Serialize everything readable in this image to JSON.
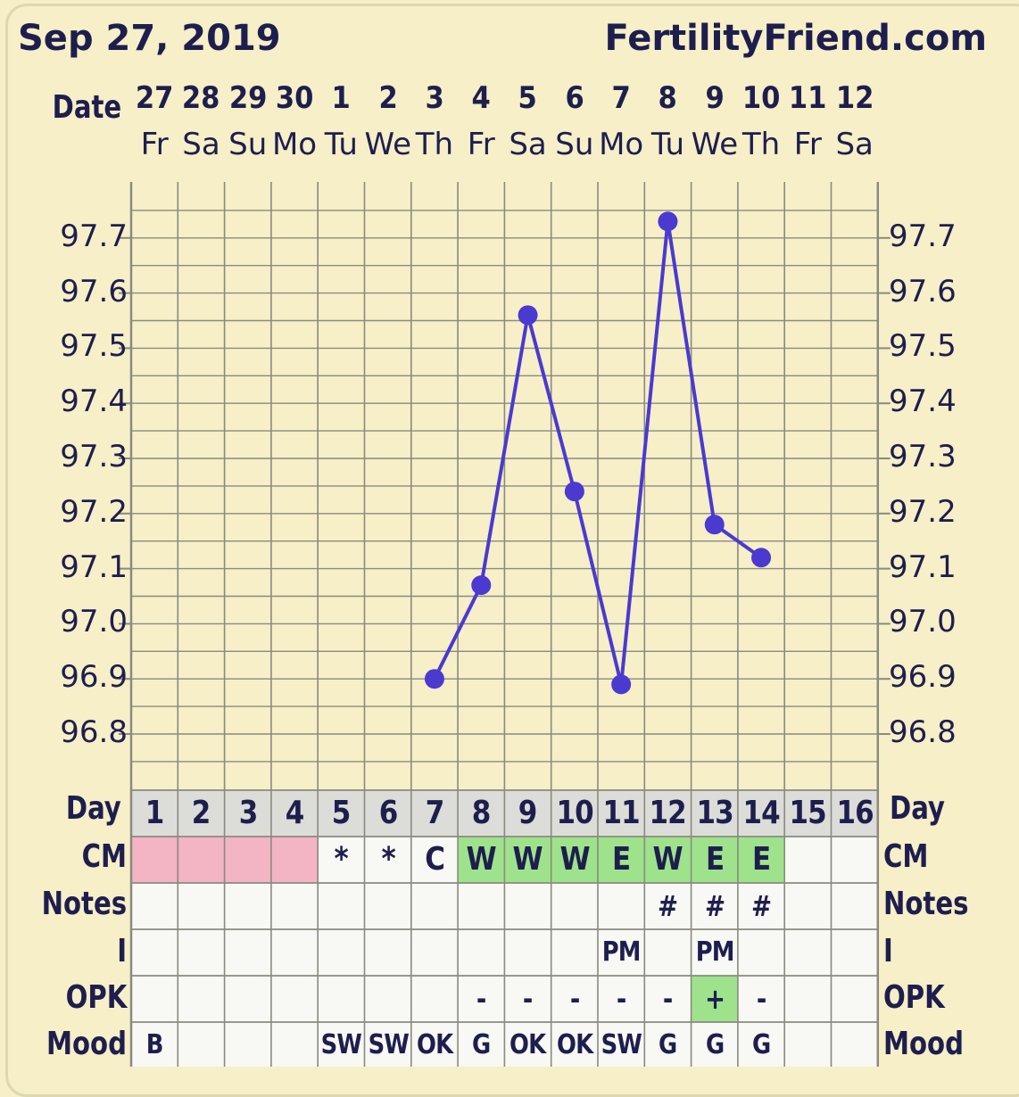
{
  "header": {
    "date": "Sep 27, 2019",
    "site": "FertilityFriend.com"
  },
  "labels": {
    "date": "Date",
    "day": "Day",
    "cm": "CM",
    "notes": "Notes",
    "i": "I",
    "opk": "OPK",
    "mood": "Mood"
  },
  "colors": {
    "background": "#f6efc7",
    "line": "#4a3ad0",
    "grid": "#8a8a80",
    "pink": "#f3b4c4",
    "green": "#9ee38b",
    "cell": "#f8f8f4",
    "dayrow": "#dcdcd8"
  },
  "columns": [
    {
      "date": "27",
      "dow": "Fr",
      "day": "1",
      "cm": "",
      "cm_fill": "pink",
      "notes": "",
      "i": "",
      "opk": "",
      "opk_fill": "",
      "mood": "B"
    },
    {
      "date": "28",
      "dow": "Sa",
      "day": "2",
      "cm": "",
      "cm_fill": "pink",
      "notes": "",
      "i": "",
      "opk": "",
      "opk_fill": "",
      "mood": ""
    },
    {
      "date": "29",
      "dow": "Su",
      "day": "3",
      "cm": "",
      "cm_fill": "pink",
      "notes": "",
      "i": "",
      "opk": "",
      "opk_fill": "",
      "mood": ""
    },
    {
      "date": "30",
      "dow": "Mo",
      "day": "4",
      "cm": "",
      "cm_fill": "pink",
      "notes": "",
      "i": "",
      "opk": "",
      "opk_fill": "",
      "mood": ""
    },
    {
      "date": "1",
      "dow": "Tu",
      "day": "5",
      "cm": "*",
      "cm_fill": "",
      "notes": "",
      "i": "",
      "opk": "",
      "opk_fill": "",
      "mood": "SW"
    },
    {
      "date": "2",
      "dow": "We",
      "day": "6",
      "cm": "*",
      "cm_fill": "",
      "notes": "",
      "i": "",
      "opk": "",
      "opk_fill": "",
      "mood": "SW"
    },
    {
      "date": "3",
      "dow": "Th",
      "day": "7",
      "cm": "C",
      "cm_fill": "",
      "notes": "",
      "i": "",
      "opk": "",
      "opk_fill": "",
      "mood": "OK"
    },
    {
      "date": "4",
      "dow": "Fr",
      "day": "8",
      "cm": "W",
      "cm_fill": "green",
      "notes": "",
      "i": "",
      "opk": "-",
      "opk_fill": "",
      "mood": "G"
    },
    {
      "date": "5",
      "dow": "Sa",
      "day": "9",
      "cm": "W",
      "cm_fill": "green",
      "notes": "",
      "i": "",
      "opk": "-",
      "opk_fill": "",
      "mood": "OK"
    },
    {
      "date": "6",
      "dow": "Su",
      "day": "10",
      "cm": "W",
      "cm_fill": "green",
      "notes": "",
      "i": "",
      "opk": "-",
      "opk_fill": "",
      "mood": "OK"
    },
    {
      "date": "7",
      "dow": "Mo",
      "day": "11",
      "cm": "E",
      "cm_fill": "green",
      "notes": "",
      "i": "PM",
      "opk": "-",
      "opk_fill": "",
      "mood": "SW"
    },
    {
      "date": "8",
      "dow": "Tu",
      "day": "12",
      "cm": "W",
      "cm_fill": "green",
      "notes": "#",
      "i": "",
      "opk": "-",
      "opk_fill": "",
      "mood": "G"
    },
    {
      "date": "9",
      "dow": "We",
      "day": "13",
      "cm": "E",
      "cm_fill": "green",
      "notes": "#",
      "i": "PM",
      "opk": "+",
      "opk_fill": "green",
      "mood": "G"
    },
    {
      "date": "10",
      "dow": "Th",
      "day": "14",
      "cm": "E",
      "cm_fill": "green",
      "notes": "#",
      "i": "",
      "opk": "-",
      "opk_fill": "",
      "mood": "G"
    },
    {
      "date": "11",
      "dow": "Fr",
      "day": "15",
      "cm": "",
      "cm_fill": "",
      "notes": "",
      "i": "",
      "opk": "",
      "opk_fill": "",
      "mood": ""
    },
    {
      "date": "12",
      "dow": "Sa",
      "day": "16",
      "cm": "",
      "cm_fill": "",
      "notes": "",
      "i": "",
      "opk": "",
      "opk_fill": "",
      "mood": ""
    }
  ],
  "chart_data": {
    "type": "line",
    "title": "",
    "xlabel": "Day",
    "ylabel": "",
    "y_ticks": [
      "97.7",
      "97.6",
      "97.5",
      "97.4",
      "97.3",
      "97.2",
      "97.1",
      "97.0",
      "96.9",
      "96.8"
    ],
    "ylim": [
      96.7,
      97.8
    ],
    "grid": true,
    "series": [
      {
        "x": [
          7,
          8,
          9,
          10,
          11,
          12,
          13,
          14
        ],
        "y": [
          96.9,
          97.07,
          97.56,
          97.24,
          96.89,
          97.73,
          97.18,
          97.12
        ]
      }
    ]
  }
}
